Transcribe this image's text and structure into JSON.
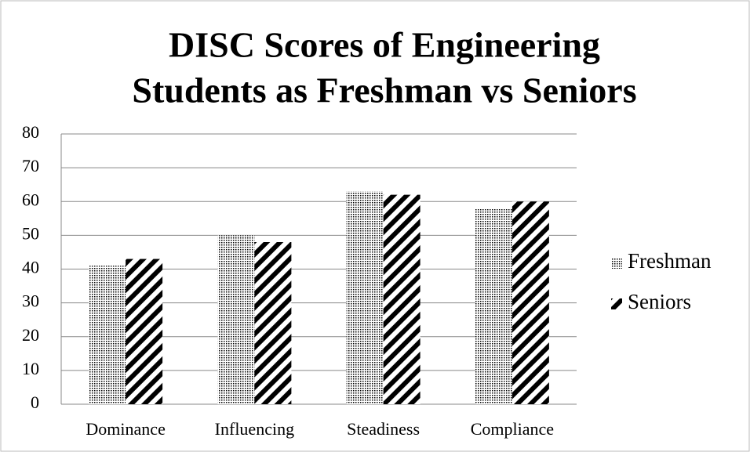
{
  "chart_data": {
    "type": "bar",
    "title": [
      "DISC Scores of Engineering",
      "Students as Freshman vs Seniors"
    ],
    "categories": [
      "Dominance",
      "Influencing",
      "Steadiness",
      "Compliance"
    ],
    "series": [
      {
        "name": "Freshman",
        "color": "#000000",
        "pattern": "dots",
        "values": [
          41,
          50,
          63,
          58
        ]
      },
      {
        "name": "Seniors",
        "color": "#000000",
        "pattern": "stripes",
        "values": [
          43,
          48,
          62,
          60
        ]
      }
    ],
    "ylim": [
      0,
      80
    ],
    "yticks": [
      0,
      10,
      20,
      30,
      40,
      50,
      60,
      70,
      80
    ],
    "grid": true,
    "legend": "right"
  }
}
